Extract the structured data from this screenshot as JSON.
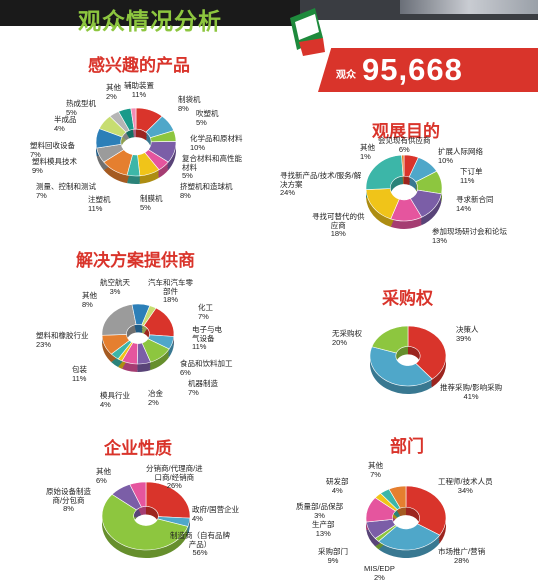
{
  "header": {
    "title": "观众情况分析",
    "visitors_label": "观众",
    "visitors_value": "95,668"
  },
  "colors": {
    "accent_red": "#d9342b",
    "title_green": "#8dc63f",
    "palette": [
      "#d9342b",
      "#4fa7c9",
      "#8dc63f",
      "#7b5ea7",
      "#e5559e",
      "#f0c419",
      "#3cb6a8",
      "#e57f2f",
      "#9b9b9b",
      "#2c7fb8",
      "#c7dd71",
      "#b5b5b5",
      "#1a9a8a",
      "#f28cb4"
    ]
  },
  "chart_data": [
    {
      "type": "pie",
      "title": "感兴趣的产品",
      "categories": [
        "辅助装置",
        "制袋机",
        "吹塑机",
        "化学品和原材料",
        "复合材料和高性能材料",
        "挤塑机和造球机",
        "制膜机",
        "注塑机",
        "测量、控制和测试",
        "塑料模具技术",
        "塑料回收设备",
        "半成品",
        "热成型机",
        "其他"
      ],
      "values": [
        11,
        8,
        5,
        10,
        5,
        8,
        5,
        11,
        7,
        9,
        7,
        4,
        5,
        2
      ],
      "labels": [
        "辅助装置",
        "制袋机",
        "吹塑机",
        "化学品和原材料",
        "复合材料和高性能\n材料",
        "挤塑机和造球机",
        "制膜机",
        "注塑机",
        "测量、控制和测试",
        "塑料模具技术",
        "塑料回收设备",
        "半成品",
        "热成型机",
        "其他"
      ],
      "value_labels": [
        "11%",
        "8%",
        "5%",
        "10%",
        "5%",
        "8%",
        "5%",
        "11%",
        "7%",
        "9%",
        "7%",
        "4%",
        "5%",
        "2%"
      ]
    },
    {
      "type": "pie",
      "title": "观展目的",
      "categories": [
        "会见现有供应商",
        "扩展人际网络",
        "下订单",
        "寻求新合同",
        "参加现场研讨会和论坛",
        "寻找可替代的供应商",
        "寻找新产品/技术/服务/解决方案",
        "其他"
      ],
      "values": [
        6,
        10,
        11,
        14,
        13,
        18,
        24,
        1
      ],
      "labels": [
        "会见现有供应商",
        "扩展人际网络",
        "下订单",
        "寻求新合同",
        "参加现场研讨会和论坛",
        "寻找可替代的供\n应商",
        "寻找新产品/技术/服务/解\n决方案",
        "其他"
      ],
      "value_labels": [
        "6%",
        "10%",
        "11%",
        "14%",
        "13%",
        "18%",
        "24%",
        "1%"
      ]
    },
    {
      "type": "pie",
      "title": "解决方案提供商",
      "categories": [
        "汽车和汽车零部件",
        "化工",
        "电子与电气设备",
        "食品和饮料加工",
        "机器制造",
        "冶金",
        "模具行业",
        "包装",
        "塑料和橡胶行业",
        "其他",
        "航空航天"
      ],
      "values": [
        18,
        7,
        11,
        6,
        7,
        2,
        4,
        11,
        23,
        8,
        3
      ],
      "labels": [
        "汽车和汽车零\n部件",
        "化工",
        "电子与电\n气设备",
        "食品和饮料加工",
        "机器制造",
        "冶金",
        "模具行业",
        "包装",
        "塑料和橡胶行业",
        "其他",
        "航空航天"
      ],
      "value_labels": [
        "18%",
        "7%",
        "11%",
        "6%",
        "7%",
        "2%",
        "4%",
        "11%",
        "23%",
        "8%",
        "3%"
      ]
    },
    {
      "type": "pie",
      "title": "采购权",
      "categories": [
        "决策人",
        "推荐采购/影响采购",
        "无采购权"
      ],
      "values": [
        39,
        41,
        20
      ],
      "labels": [
        "决策人",
        "推荐采购/影响采购",
        "无采购权"
      ],
      "value_labels": [
        "39%",
        "41%",
        "20%"
      ]
    },
    {
      "type": "pie",
      "title": "企业性质",
      "categories": [
        "分销商/代理商/进口商/经销商",
        "政府/国营企业",
        "制造商（自有品牌产品）",
        "原始设备制造商/分包商",
        "其他"
      ],
      "values": [
        26,
        4,
        56,
        8,
        6
      ],
      "labels": [
        "分销商/代理商/进\n口商/经销商",
        "政府/国营企业",
        "制造商（自有品牌\n产品）",
        "原始设备制造\n商/分包商",
        "其他"
      ],
      "value_labels": [
        "26%",
        "4%",
        "56%",
        "8%",
        "6%"
      ]
    },
    {
      "type": "pie",
      "title": "部门",
      "categories": [
        "工程师/技术人员",
        "市场推广/营销",
        "MIS/EDP",
        "采购部门",
        "生产部",
        "质量部/品保部",
        "研发部",
        "其他"
      ],
      "values": [
        34,
        28,
        2,
        9,
        13,
        3,
        4,
        7
      ],
      "labels": [
        "工程师/技术人员",
        "市场推广/营销",
        "MIS/EDP",
        "采购部门",
        "生产部",
        "质量部/品保部",
        "研发部",
        "其他"
      ],
      "value_labels": [
        "34%",
        "28%",
        "2%",
        "9%",
        "13%",
        "3%",
        "4%",
        "7%"
      ]
    }
  ]
}
